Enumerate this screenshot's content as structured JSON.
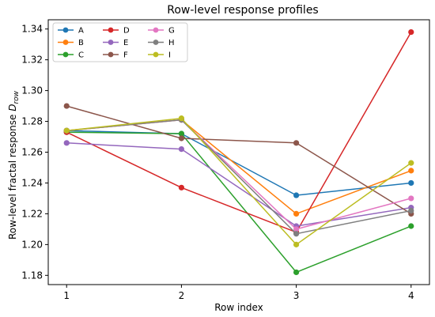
{
  "chart_data": {
    "type": "line",
    "title": "Row-level response profiles",
    "xlabel": "Row index",
    "ylabel_main": "Row-level fractal response ",
    "ylabel_symbol": "D",
    "ylabel_sub": "row",
    "x": [
      1,
      2,
      3,
      4
    ],
    "xticks": [
      "1",
      "2",
      "3",
      "4"
    ],
    "xlim": [
      0.84,
      4.16
    ],
    "ylim": [
      1.174,
      1.346
    ],
    "yticks": [
      "1.18",
      "1.20",
      "1.22",
      "1.24",
      "1.26",
      "1.28",
      "1.30",
      "1.32",
      "1.34"
    ],
    "grid": false,
    "legend_position": "top-left",
    "legend_columns": 3,
    "series": [
      {
        "name": "A",
        "color": "#1f77b4",
        "values": [
          1.274,
          1.272,
          1.232,
          1.24
        ]
      },
      {
        "name": "B",
        "color": "#ff7f0e",
        "values": [
          1.274,
          1.281,
          1.22,
          1.248
        ]
      },
      {
        "name": "C",
        "color": "#2ca02c",
        "values": [
          1.273,
          1.272,
          1.182,
          1.212
        ]
      },
      {
        "name": "D",
        "color": "#d62728",
        "values": [
          1.273,
          1.237,
          1.208,
          1.338
        ]
      },
      {
        "name": "E",
        "color": "#9467bd",
        "values": [
          1.266,
          1.262,
          1.212,
          1.224
        ]
      },
      {
        "name": "F",
        "color": "#8c564b",
        "values": [
          1.29,
          1.269,
          1.266,
          1.22
        ]
      },
      {
        "name": "G",
        "color": "#e377c2",
        "values": [
          1.274,
          1.281,
          1.21,
          1.23
        ]
      },
      {
        "name": "H",
        "color": "#7f7f7f",
        "values": [
          1.274,
          1.281,
          1.207,
          1.222
        ]
      },
      {
        "name": "I",
        "color": "#bcbd22",
        "values": [
          1.274,
          1.282,
          1.2,
          1.253
        ]
      }
    ]
  }
}
